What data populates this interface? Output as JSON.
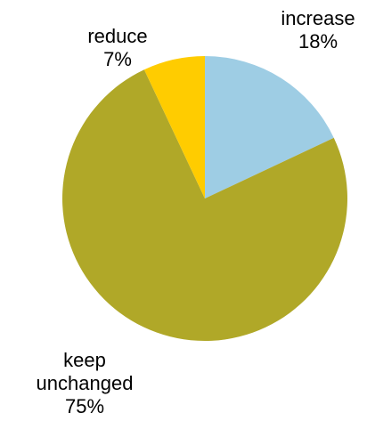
{
  "chart_data": {
    "type": "pie",
    "start_angle_deg": 0,
    "direction": "clockwise",
    "slices": [
      {
        "label": "increase",
        "value": 18,
        "value_label": "18%",
        "color": "#9ECDE4"
      },
      {
        "label": "keep unchanged",
        "value": 75,
        "value_label": "75%",
        "color": "#B0A828"
      },
      {
        "label": "reduce",
        "value": 7,
        "value_label": "7%",
        "color": "#FFCC00"
      }
    ],
    "labels": {
      "increase": {
        "name": "increase",
        "percent": "18%"
      },
      "keep": {
        "name_line1": "keep",
        "name_line2": "unchanged",
        "percent": "75%"
      },
      "reduce": {
        "name": "reduce",
        "percent": "7%"
      }
    }
  }
}
